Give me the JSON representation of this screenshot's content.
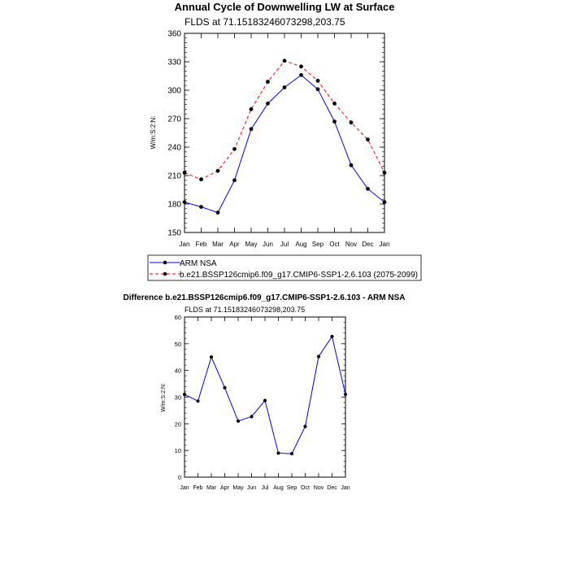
{
  "chart_data": [
    {
      "type": "line",
      "title": "Annual Cycle of Downwelling LW at Surface",
      "subtitle": "FLDS at 71.15183246073298,203.75",
      "ylabel": "W/m:S:2:N:",
      "xlabel": "",
      "ylim": [
        150,
        360
      ],
      "yticks": [
        150,
        180,
        210,
        240,
        270,
        300,
        330,
        360
      ],
      "categories": [
        "Jan",
        "Feb",
        "Mar",
        "Apr",
        "May",
        "Jun",
        "Jul",
        "Aug",
        "Sep",
        "Oct",
        "Nov",
        "Dec",
        "Jan"
      ],
      "series": [
        {
          "name": "ARM NSA",
          "color": "#0000ff",
          "dash": "solid",
          "values": [
            182,
            177,
            171,
            205,
            259,
            286,
            303,
            316,
            301,
            267,
            221,
            196,
            182
          ]
        },
        {
          "name": "b.e21.BSSP126cmip6.f09_g17.CMIP6-SSP1-2.6.103 (2075-2099)",
          "color": "#ff0000",
          "dash": "dashed",
          "values": [
            213,
            206,
            215,
            238,
            280,
            309,
            331,
            325,
            310,
            286,
            266,
            248,
            213
          ]
        }
      ],
      "legend": "below"
    },
    {
      "type": "line",
      "title": "Difference b.e21.BSSP126cmip6.f09_g17.CMIP6-SSP1-2.6.103 - ARM NSA",
      "subtitle": "FLDS at 71.15183246073298,203.75",
      "ylabel": "W/m:S:2:N:",
      "xlabel": "",
      "ylim": [
        0,
        60
      ],
      "yticks": [
        0,
        10,
        20,
        30,
        40,
        50,
        60
      ],
      "categories": [
        "Jan",
        "Feb",
        "Mar",
        "Apr",
        "May",
        "Jun",
        "Jul",
        "Aug",
        "Sep",
        "Oct",
        "Nov",
        "Dec",
        "Jan"
      ],
      "series": [
        {
          "name": "Difference",
          "color": "#0000ff",
          "dash": "solid",
          "values": [
            31,
            28.5,
            45,
            33.5,
            21,
            22.7,
            28.7,
            9,
            8.8,
            19,
            45.2,
            52.7,
            31
          ]
        }
      ]
    }
  ]
}
